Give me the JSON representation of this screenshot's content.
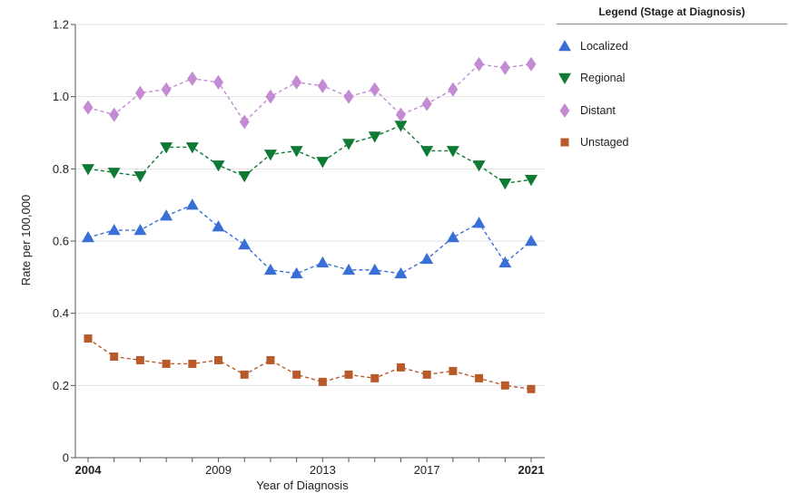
{
  "legend": {
    "title": "Legend (Stage at Diagnosis)"
  },
  "chart_data": {
    "type": "line",
    "xlabel": "Year of Diagnosis",
    "ylabel": "Rate per 100,000",
    "x": [
      2004,
      2005,
      2006,
      2007,
      2008,
      2009,
      2010,
      2011,
      2012,
      2013,
      2014,
      2015,
      2016,
      2017,
      2018,
      2019,
      2020,
      2021
    ],
    "xlim": [
      2004,
      2021
    ],
    "ylim": [
      0,
      1.2
    ],
    "x_ticks": [
      {
        "value": 2004,
        "label": "2004",
        "bold": true
      },
      {
        "value": 2009,
        "label": "2009",
        "bold": false
      },
      {
        "value": 2013,
        "label": "2013",
        "bold": false
      },
      {
        "value": 2017,
        "label": "2017",
        "bold": false
      },
      {
        "value": 2021,
        "label": "2021",
        "bold": true
      }
    ],
    "y_ticks": [
      {
        "value": 0,
        "label": "0"
      },
      {
        "value": 0.2,
        "label": "0.2"
      },
      {
        "value": 0.4,
        "label": "0.4"
      },
      {
        "value": 0.6,
        "label": "0.6"
      },
      {
        "value": 0.8,
        "label": "0.8"
      },
      {
        "value": 1.0,
        "label": "1.0"
      },
      {
        "value": 1.2,
        "label": "1.2"
      }
    ],
    "grid": "horizontal",
    "legend_position": "top-right",
    "line_style": "dashed",
    "series": [
      {
        "name": "Localized",
        "marker": "triangle-up",
        "color": "#3b6fd8",
        "values": [
          0.61,
          0.63,
          0.63,
          0.67,
          0.7,
          0.64,
          0.59,
          0.52,
          0.51,
          0.54,
          0.52,
          0.52,
          0.51,
          0.55,
          0.61,
          0.65,
          0.54,
          0.6
        ]
      },
      {
        "name": "Regional",
        "marker": "triangle-down",
        "color": "#0f7a33",
        "values": [
          0.8,
          0.79,
          0.78,
          0.86,
          0.86,
          0.81,
          0.78,
          0.84,
          0.85,
          0.82,
          0.87,
          0.89,
          0.92,
          0.85,
          0.85,
          0.81,
          0.76,
          0.77
        ]
      },
      {
        "name": "Distant",
        "marker": "diamond",
        "color": "#c48bd4",
        "values": [
          0.97,
          0.95,
          1.01,
          1.02,
          1.05,
          1.04,
          0.93,
          1.0,
          1.04,
          1.03,
          1.0,
          1.02,
          0.95,
          0.98,
          1.02,
          1.09,
          1.08,
          1.09
        ]
      },
      {
        "name": "Unstaged",
        "marker": "square",
        "color": "#b85a2a",
        "values": [
          0.33,
          0.28,
          0.27,
          0.26,
          0.26,
          0.27,
          0.23,
          0.27,
          0.23,
          0.21,
          0.23,
          0.22,
          0.25,
          0.23,
          0.24,
          0.22,
          0.2,
          0.19
        ]
      }
    ]
  }
}
